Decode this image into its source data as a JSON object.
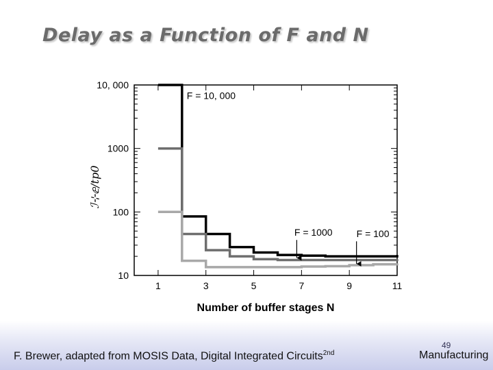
{
  "slide": {
    "title": "Delay as a Function of F and N",
    "credit_text": "F. Brewer, adapted from MOSIS Data, Digital Integrated Circuits",
    "credit_sup": "2nd",
    "page_number": "49",
    "footer_right": "Manufacturing"
  },
  "chart_data": {
    "type": "line",
    "step": true,
    "title": "",
    "xlabel": "Number of buffer stages N",
    "ylabel": "ℐ⊹ⅇ/𝑡𝑝0",
    "xlim": [
      0,
      11
    ],
    "ylim": [
      10,
      10000
    ],
    "yscale": "log",
    "xticks": [
      1,
      3,
      5,
      7,
      9,
      11
    ],
    "xtick_labels": [
      "1",
      "3",
      "5",
      "7",
      "9",
      "11"
    ],
    "yticks": [
      10,
      100,
      1000,
      10000
    ],
    "ytick_labels": [
      "10",
      "100",
      "1000",
      "10, 000"
    ],
    "grid": false,
    "series": [
      {
        "name": "F = 10, 000",
        "color": "#000000",
        "x": [
          1,
          2,
          3,
          4,
          5,
          6,
          7,
          8,
          9,
          10,
          11
        ],
        "y": [
          10000,
          85,
          45,
          28,
          23,
          21,
          20.5,
          20,
          20,
          20,
          21
        ]
      },
      {
        "name": "F = 1000",
        "color": "#6e6e6e",
        "x": [
          1,
          2,
          3,
          4,
          5,
          6,
          7,
          8,
          9,
          10,
          11
        ],
        "y": [
          1000,
          45,
          25,
          20,
          18,
          17.5,
          17.5,
          17.5,
          17.5,
          17.5,
          18
        ]
      },
      {
        "name": "F = 100",
        "color": "#a8a8a8",
        "x": [
          1,
          2,
          3,
          4,
          5,
          6,
          7,
          8,
          9,
          10,
          11
        ],
        "y": [
          100,
          17,
          13.5,
          13.5,
          13.5,
          13.5,
          13.8,
          14,
          14.5,
          15,
          15.5
        ]
      }
    ],
    "annotations": [
      {
        "text": "F = 10, 000",
        "x": 2.2,
        "y": 6000
      },
      {
        "text": "F = 1000",
        "x": 6.7,
        "y": 42,
        "arrow_to": [
          6.8,
          18
        ]
      },
      {
        "text": "F = 100",
        "x": 9.3,
        "y": 40,
        "arrow_to": [
          9.3,
          14.5
        ]
      }
    ]
  }
}
